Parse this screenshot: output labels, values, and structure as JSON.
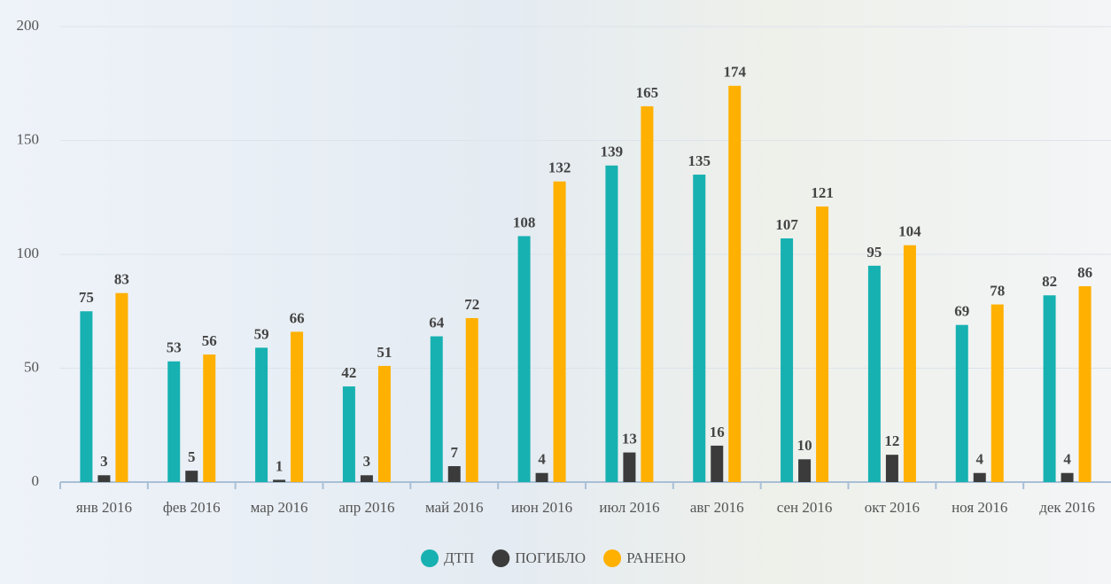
{
  "chart_data": {
    "type": "bar",
    "categories": [
      "янв 2016",
      "фев 2016",
      "мар 2016",
      "апр 2016",
      "май 2016",
      "июн 2016",
      "июл 2016",
      "авг 2016",
      "сен 2016",
      "окт 2016",
      "ноя 2016",
      "дек 2016"
    ],
    "series": [
      {
        "name": "ДТП",
        "color": "#17b1b1",
        "values": [
          75,
          53,
          59,
          42,
          64,
          108,
          139,
          135,
          107,
          95,
          69,
          82
        ]
      },
      {
        "name": "ПОГИБЛО",
        "color": "#3b3b3b",
        "values": [
          3,
          5,
          1,
          3,
          7,
          4,
          13,
          16,
          10,
          12,
          4,
          4
        ]
      },
      {
        "name": "РАНЕНО",
        "color": "#ffb000",
        "values": [
          83,
          56,
          66,
          51,
          72,
          132,
          165,
          174,
          121,
          104,
          78,
          86
        ]
      }
    ],
    "ylim": [
      0,
      200
    ],
    "yticks": [
      0,
      50,
      100,
      150,
      200
    ],
    "grid": true
  }
}
